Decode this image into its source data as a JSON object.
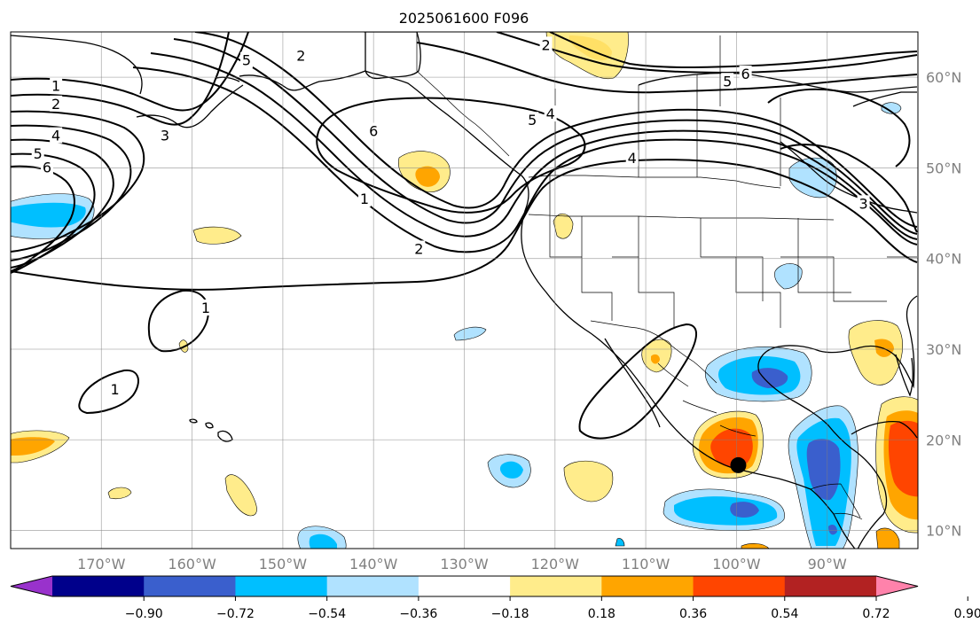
{
  "chart_data": {
    "type": "map-contour",
    "title": "2025061600 F096",
    "extent": {
      "lon": [
        -180,
        -80
      ],
      "lat": [
        8,
        65
      ]
    },
    "lon_ticks": [
      -170,
      -160,
      -150,
      -140,
      -130,
      -120,
      -110,
      -100,
      -90
    ],
    "lat_ticks": [
      60,
      50,
      40,
      30,
      20,
      10
    ],
    "lon_tick_labels": [
      "170°W",
      "160°W",
      "150°W",
      "140°W",
      "130°W",
      "120°W",
      "110°W",
      "100°W",
      "90°W"
    ],
    "lat_tick_labels": [
      "60°N",
      "50°N",
      "40°N",
      "30°N",
      "20°N",
      "10°N"
    ],
    "grid": true,
    "colorbar": {
      "levels": [
        -1.08,
        -0.9,
        -0.72,
        -0.54,
        -0.36,
        -0.18,
        0.18,
        0.36,
        0.54,
        0.72,
        0.9,
        1.08
      ],
      "tick_values": [
        -0.9,
        -0.72,
        -0.54,
        -0.36,
        -0.18,
        0.18,
        0.36,
        0.54,
        0.72,
        0.9
      ],
      "tick_labels": [
        "−0.90",
        "−0.72",
        "−0.54",
        "−0.36",
        "−0.18",
        "0.18",
        "0.36",
        "0.54",
        "0.72",
        "0.90"
      ],
      "colors": [
        "#9932cc",
        "#00008b",
        "#3a5fcd",
        "#00bfff",
        "#b0e2ff",
        "#ffffff",
        "#ffec8b",
        "#ffa500",
        "#ff4500",
        "#b22222",
        "#ff82ab"
      ],
      "extend": "both"
    },
    "contour_lines": {
      "levels": [
        1,
        2,
        3,
        4,
        5,
        6
      ],
      "labels": [
        {
          "text": "1",
          "lon": -175,
          "lat": 59
        },
        {
          "text": "2",
          "lon": -175,
          "lat": 57
        },
        {
          "text": "4",
          "lon": -175,
          "lat": 53.5
        },
        {
          "text": "5",
          "lon": -177,
          "lat": 51.5
        },
        {
          "text": "6",
          "lon": -176,
          "lat": 50
        },
        {
          "text": "3",
          "lon": -163,
          "lat": 53.5
        },
        {
          "text": "5",
          "lon": -154,
          "lat": 61.8
        },
        {
          "text": "2",
          "lon": -148,
          "lat": 62.3
        },
        {
          "text": "6",
          "lon": -140,
          "lat": 54
        },
        {
          "text": "1",
          "lon": -141,
          "lat": 46.5
        },
        {
          "text": "2",
          "lon": -135,
          "lat": 41
        },
        {
          "text": "2",
          "lon": -121,
          "lat": 63.5
        },
        {
          "text": "5",
          "lon": -122.5,
          "lat": 55.2
        },
        {
          "text": "4",
          "lon": -120.5,
          "lat": 55.9
        },
        {
          "text": "4",
          "lon": -111.5,
          "lat": 51
        },
        {
          "text": "5",
          "lon": -101,
          "lat": 59.5
        },
        {
          "text": "6",
          "lon": -99,
          "lat": 60.3
        },
        {
          "text": "3",
          "lon": -86,
          "lat": 46
        },
        {
          "text": "1",
          "lon": -158.5,
          "lat": 34.5
        },
        {
          "text": "1",
          "lon": -168.5,
          "lat": 25.5
        }
      ]
    },
    "filled_anomalies": [
      {
        "value": -0.54,
        "lon": -176,
        "lat": 45.5
      },
      {
        "value": 0.36,
        "lon": -134,
        "lat": 49.5
      },
      {
        "value": 0.18,
        "lon": -123,
        "lat": 43.5
      },
      {
        "value": 0.18,
        "lon": -160,
        "lat": 41.5
      },
      {
        "value": -0.36,
        "lon": -91,
        "lat": 50.5
      },
      {
        "value": -0.36,
        "lon": -92.5,
        "lat": 37.5
      },
      {
        "value": -0.54,
        "lon": -97,
        "lat": 27
      },
      {
        "value": -0.72,
        "lon": -96.5,
        "lat": 25.5
      },
      {
        "value": 0.54,
        "lon": -101,
        "lat": 19.5
      },
      {
        "value": -0.72,
        "lon": -89.5,
        "lat": 16.5
      },
      {
        "value": 0.54,
        "lon": -81,
        "lat": 17.5
      },
      {
        "value": 0.36,
        "lon": -86,
        "lat": 30.5
      },
      {
        "value": -0.54,
        "lon": -104,
        "lat": 12
      },
      {
        "value": -0.54,
        "lon": -127,
        "lat": 14.5
      },
      {
        "value": 0.18,
        "lon": -116.5,
        "lat": 14.5
      },
      {
        "value": 0.36,
        "lon": -178,
        "lat": 19.5
      },
      {
        "value": 0.18,
        "lon": -155,
        "lat": 14
      },
      {
        "value": 0.18,
        "lon": -161,
        "lat": 31
      },
      {
        "value": 0.18,
        "lon": -168,
        "lat": 14.5
      },
      {
        "value": -0.18,
        "lon": -133,
        "lat": 29.5
      },
      {
        "value": 0.36,
        "lon": -119,
        "lat": 63.5
      },
      {
        "value": 0.36,
        "lon": -111,
        "lat": 29
      }
    ],
    "marker": {
      "lon": -99.8,
      "lat": 17.2,
      "color": "#000000"
    }
  }
}
